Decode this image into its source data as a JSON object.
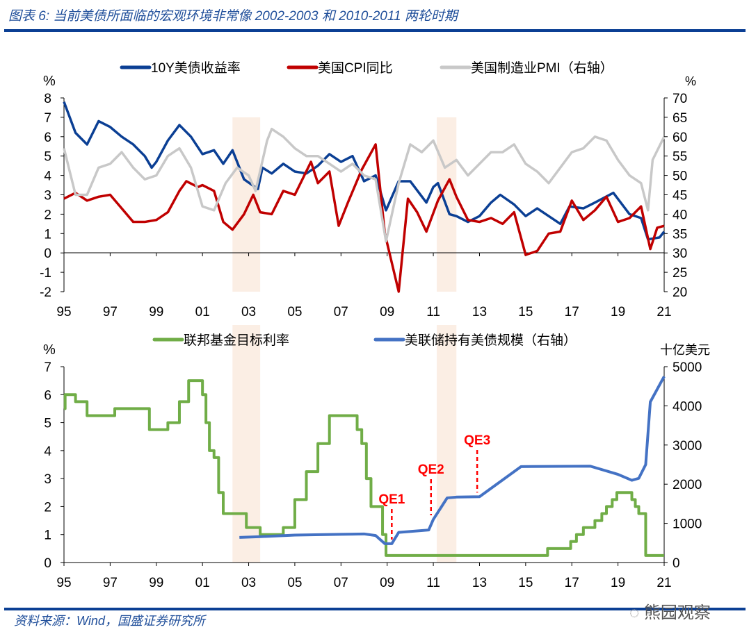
{
  "title": "图表 6:  当前美债所面临的宏观环境非常像 2002-2003 和 2010-2011 两轮时期",
  "source": "资料来源：Wind，国盛证券研究所",
  "watermark": "熊园观察",
  "colors": {
    "yield10y": "#0b3f94",
    "cpi": "#c00000",
    "pmi": "#c8c8c8",
    "fedfunds": "#70ad47",
    "fedholdings": "#4472c4",
    "shade": "#fbeee4",
    "qe": "#ff0000"
  },
  "chart_data": [
    {
      "type": "line",
      "title": "",
      "ylabel": "%",
      "y2label": "%",
      "ylim": [
        -2,
        8
      ],
      "y2lim": [
        20,
        70
      ],
      "xlim": [
        1995,
        2021
      ],
      "xticks": [
        "95",
        "97",
        "99",
        "01",
        "03",
        "05",
        "07",
        "09",
        "11",
        "13",
        "15",
        "17",
        "19",
        "21"
      ],
      "yticks": [
        "8",
        "7",
        "6",
        "5",
        "4",
        "3",
        "2",
        "1",
        "0",
        "-1",
        "-2"
      ],
      "y2ticks": [
        "70",
        "65",
        "60",
        "55",
        "50",
        "45",
        "40",
        "35",
        "30",
        "25",
        "20"
      ],
      "legend_position": "top-center",
      "shaded_periods": [
        [
          2002.3,
          2003.5
        ],
        [
          2011.15,
          2012.0
        ]
      ],
      "series": [
        {
          "name": "10Y美债收益率",
          "axis": "left",
          "x": [
            1995,
            1995.5,
            1996,
            1996.5,
            1997,
            1997.5,
            1998,
            1998.5,
            1998.8,
            1999,
            1999.5,
            2000,
            2000.5,
            2001,
            2001.5,
            2001.9,
            2002.3,
            2002.8,
            2003.4,
            2003.6,
            2004,
            2004.5,
            2005,
            2005.5,
            2006,
            2006.5,
            2007,
            2007.5,
            2008,
            2008.5,
            2008.95,
            2009.5,
            2010,
            2010.7,
            2011,
            2011.2,
            2011.7,
            2012,
            2012.5,
            2013,
            2013.5,
            2013.9,
            2014.5,
            2015,
            2015.5,
            2016.5,
            2016.9,
            2017.5,
            2018,
            2018.8,
            2019.5,
            2020,
            2020.3,
            2020.8,
            2021
          ],
          "values": [
            7.8,
            6.2,
            5.6,
            6.8,
            6.5,
            6.0,
            5.6,
            5.0,
            4.4,
            4.7,
            5.8,
            6.6,
            6.0,
            5.1,
            5.3,
            4.6,
            5.3,
            3.8,
            3.3,
            4.4,
            4.1,
            4.6,
            4.2,
            4.1,
            4.5,
            5.1,
            4.7,
            5.0,
            3.7,
            4.0,
            2.2,
            3.7,
            3.7,
            2.6,
            3.4,
            3.6,
            2.0,
            1.9,
            1.6,
            1.9,
            2.6,
            3.0,
            2.5,
            1.9,
            2.3,
            1.5,
            2.4,
            2.3,
            2.6,
            3.1,
            2.0,
            1.8,
            0.7,
            0.8,
            1.1
          ]
        },
        {
          "name": "美国CPI同比",
          "axis": "left",
          "x": [
            1995,
            1995.5,
            1996,
            1996.5,
            1997,
            1997.5,
            1998,
            1998.5,
            1999,
            1999.5,
            2000,
            2000.3,
            2000.8,
            2001,
            2001.5,
            2001.9,
            2002.3,
            2002.8,
            2003.2,
            2003.5,
            2004,
            2004.5,
            2005,
            2005.7,
            2006,
            2006.5,
            2006.9,
            2007.3,
            2007.9,
            2008.5,
            2008.9,
            2009.5,
            2009.9,
            2010.3,
            2010.7,
            2011.2,
            2011.7,
            2012,
            2012.5,
            2013,
            2013.5,
            2014,
            2014.5,
            2015,
            2015.5,
            2016,
            2016.5,
            2017,
            2017.5,
            2018,
            2018.5,
            2019,
            2019.5,
            2020,
            2020.4,
            2020.7,
            2021
          ],
          "values": [
            2.8,
            3.1,
            2.7,
            2.9,
            3.0,
            2.3,
            1.6,
            1.6,
            1.7,
            2.1,
            3.2,
            3.7,
            3.4,
            3.5,
            3.2,
            1.6,
            1.2,
            2.0,
            3.0,
            2.1,
            2.0,
            3.2,
            3.0,
            4.7,
            3.6,
            4.2,
            1.4,
            2.6,
            4.3,
            5.6,
            1.0,
            -2.0,
            2.8,
            2.1,
            1.1,
            2.7,
            3.8,
            2.9,
            1.7,
            1.6,
            1.8,
            1.5,
            2.1,
            -0.1,
            0.1,
            1.0,
            1.1,
            2.7,
            1.7,
            2.2,
            2.9,
            1.6,
            1.8,
            2.4,
            0.2,
            1.3,
            1.4
          ]
        },
        {
          "name": "美国制造业PMI（右轴）",
          "axis": "right",
          "x": [
            1995,
            1995.5,
            1996,
            1996.5,
            1997,
            1997.5,
            1998,
            1998.5,
            1999,
            1999.5,
            2000,
            2000.5,
            2001,
            2001.5,
            2002,
            2002.5,
            2003,
            2003.3,
            2003.8,
            2004,
            2004.5,
            2005,
            2005.5,
            2006,
            2006.5,
            2007,
            2007.5,
            2008,
            2008.5,
            2008.95,
            2009.5,
            2010,
            2010.5,
            2011,
            2011.5,
            2012,
            2012.5,
            2013,
            2013.5,
            2014,
            2014.5,
            2015,
            2015.5,
            2016,
            2016.5,
            2017,
            2017.5,
            2018,
            2018.5,
            2019,
            2019.5,
            2020,
            2020.3,
            2020.5,
            2021
          ],
          "values": [
            57,
            45,
            45,
            52,
            53,
            56,
            52,
            49,
            50,
            55,
            57,
            52,
            42,
            41,
            48,
            52,
            50,
            46,
            59,
            62,
            60,
            57,
            55,
            55,
            53,
            51,
            53,
            50,
            49,
            33,
            48,
            58,
            56,
            59,
            52,
            54,
            50,
            53,
            56,
            56,
            58,
            53,
            51,
            48,
            52,
            56,
            57,
            60,
            59,
            54,
            50,
            48,
            41,
            54,
            60
          ]
        }
      ]
    },
    {
      "type": "line",
      "title": "",
      "ylabel": "%",
      "y2label": "十亿美元",
      "ylim": [
        0,
        7
      ],
      "y2lim": [
        0,
        5000
      ],
      "xlim": [
        1995,
        2021
      ],
      "xticks": [
        "95",
        "97",
        "99",
        "01",
        "03",
        "05",
        "07",
        "09",
        "11",
        "13",
        "15",
        "17",
        "19",
        "21"
      ],
      "yticks": [
        "7",
        "6",
        "5",
        "4",
        "3",
        "2",
        "1",
        "0"
      ],
      "y2ticks": [
        "5000",
        "4000",
        "3000",
        "2000",
        "1000",
        "0"
      ],
      "legend_position": "top-center",
      "shaded_periods": [
        [
          2002.3,
          2003.5
        ],
        [
          2011.15,
          2012.0
        ]
      ],
      "annotations": [
        {
          "text": "QE1",
          "x": 2009.2
        },
        {
          "text": "QE2",
          "x": 2010.9
        },
        {
          "text": "QE3",
          "x": 2012.9
        }
      ],
      "series": [
        {
          "name": "联邦基金目标利率",
          "axis": "left",
          "step": true,
          "x": [
            1995,
            1995.05,
            1995.5,
            1996,
            1997.2,
            1998.7,
            1999.5,
            2000,
            2000.4,
            2001,
            2001.15,
            2001.3,
            2001.5,
            2001.7,
            2001.9,
            2002.9,
            2003.5,
            2004.5,
            2005,
            2005.5,
            2006,
            2006.5,
            2007.7,
            2007.9,
            2008.1,
            2008.3,
            2008.8,
            2008.95,
            2015.95,
            2016.95,
            2017.2,
            2017.5,
            2018,
            2018.3,
            2018.5,
            2018.75,
            2018.95,
            2019.6,
            2019.75,
            2019.9,
            2020.2,
            2021
          ],
          "values": [
            5.5,
            6.0,
            5.75,
            5.25,
            5.5,
            4.75,
            5.0,
            5.75,
            6.5,
            6.0,
            5.0,
            4.0,
            3.75,
            2.5,
            1.75,
            1.25,
            1.0,
            1.25,
            2.25,
            3.25,
            4.25,
            5.25,
            4.75,
            4.25,
            3.0,
            2.0,
            1.0,
            0.25,
            0.5,
            0.75,
            1.0,
            1.25,
            1.5,
            1.75,
            2.0,
            2.25,
            2.5,
            2.25,
            2.0,
            1.75,
            0.25,
            0.25
          ]
        },
        {
          "name": "美联储持有美债规模（右轴）",
          "axis": "right",
          "x": [
            2002.6,
            2003.5,
            2005,
            2007,
            2008,
            2008.5,
            2008.9,
            2009.2,
            2009.5,
            2010.8,
            2011.0,
            2011.6,
            2012,
            2013,
            2014.8,
            2017.8,
            2019.0,
            2019.6,
            2019.9,
            2020.2,
            2020.4,
            2021
          ],
          "values": [
            640,
            660,
            700,
            720,
            730,
            690,
            480,
            480,
            770,
            830,
            1100,
            1650,
            1670,
            1680,
            2450,
            2460,
            2250,
            2100,
            2150,
            2500,
            4100,
            4750
          ]
        }
      ]
    }
  ]
}
